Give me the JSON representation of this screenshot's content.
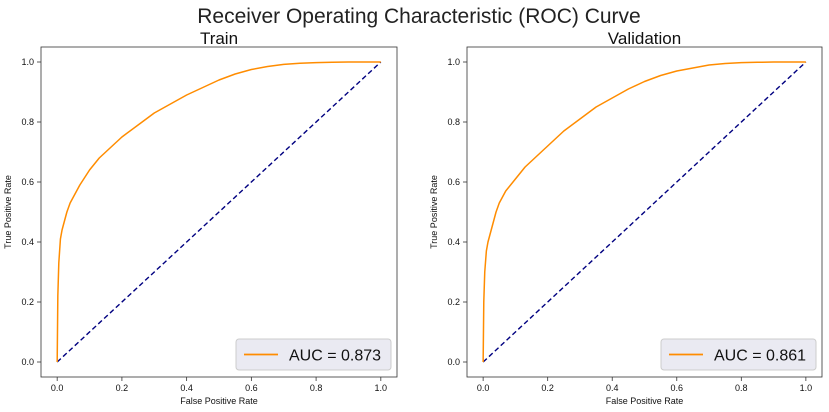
{
  "figure": {
    "title": "Receiver Operating Characteristic (ROC) Curve"
  },
  "chart_data": [
    {
      "type": "line",
      "title": "Train",
      "xlabel": "False Positive Rate",
      "ylabel": "True Positive Rate",
      "xlim": [
        -0.05,
        1.05
      ],
      "ylim": [
        -0.05,
        1.05
      ],
      "xticks": [
        "0.0",
        "0.2",
        "0.4",
        "0.6",
        "0.8",
        "1.0"
      ],
      "yticks": [
        "0.0",
        "0.2",
        "0.4",
        "0.6",
        "0.8",
        "1.0"
      ],
      "grid": false,
      "legend_position": "lower-right",
      "series": [
        {
          "name": "AUC = 0.873",
          "color": "#ff8c00",
          "style": "solid",
          "x": [
            0,
            0.002,
            0.005,
            0.01,
            0.015,
            0.02,
            0.03,
            0.04,
            0.05,
            0.07,
            0.1,
            0.13,
            0.16,
            0.2,
            0.25,
            0.3,
            0.35,
            0.4,
            0.45,
            0.5,
            0.55,
            0.6,
            0.65,
            0.7,
            0.75,
            0.8,
            0.85,
            0.9,
            0.95,
            1.0
          ],
          "y": [
            0,
            0.22,
            0.33,
            0.41,
            0.44,
            0.46,
            0.5,
            0.53,
            0.55,
            0.59,
            0.64,
            0.68,
            0.71,
            0.75,
            0.79,
            0.83,
            0.86,
            0.89,
            0.915,
            0.94,
            0.96,
            0.975,
            0.985,
            0.992,
            0.996,
            0.998,
            0.999,
            1.0,
            1.0,
            1.0
          ]
        },
        {
          "name": "",
          "color": "#000080",
          "style": "dashed",
          "x": [
            0,
            1
          ],
          "y": [
            0,
            1
          ]
        }
      ]
    },
    {
      "type": "line",
      "title": "Validation",
      "xlabel": "False Positive Rate",
      "ylabel": "True Positive Rate",
      "xlim": [
        -0.05,
        1.05
      ],
      "ylim": [
        -0.05,
        1.05
      ],
      "xticks": [
        "0.0",
        "0.2",
        "0.4",
        "0.6",
        "0.8",
        "1.0"
      ],
      "yticks": [
        "0.0",
        "0.2",
        "0.4",
        "0.6",
        "0.8",
        "1.0"
      ],
      "grid": false,
      "legend_position": "lower-right",
      "series": [
        {
          "name": "AUC = 0.861",
          "color": "#ff8c00",
          "style": "solid",
          "x": [
            0,
            0.002,
            0.005,
            0.01,
            0.015,
            0.02,
            0.03,
            0.04,
            0.05,
            0.07,
            0.1,
            0.13,
            0.16,
            0.2,
            0.25,
            0.3,
            0.35,
            0.4,
            0.45,
            0.5,
            0.55,
            0.6,
            0.65,
            0.7,
            0.75,
            0.8,
            0.85,
            0.9,
            0.95,
            1.0
          ],
          "y": [
            0,
            0.2,
            0.3,
            0.37,
            0.4,
            0.42,
            0.46,
            0.5,
            0.53,
            0.57,
            0.61,
            0.65,
            0.68,
            0.72,
            0.77,
            0.81,
            0.85,
            0.88,
            0.91,
            0.935,
            0.955,
            0.97,
            0.98,
            0.99,
            0.995,
            0.998,
            0.999,
            1.0,
            1.0,
            1.0
          ]
        },
        {
          "name": "",
          "color": "#000080",
          "style": "dashed",
          "x": [
            0,
            1
          ],
          "y": [
            0,
            1
          ]
        }
      ]
    }
  ]
}
